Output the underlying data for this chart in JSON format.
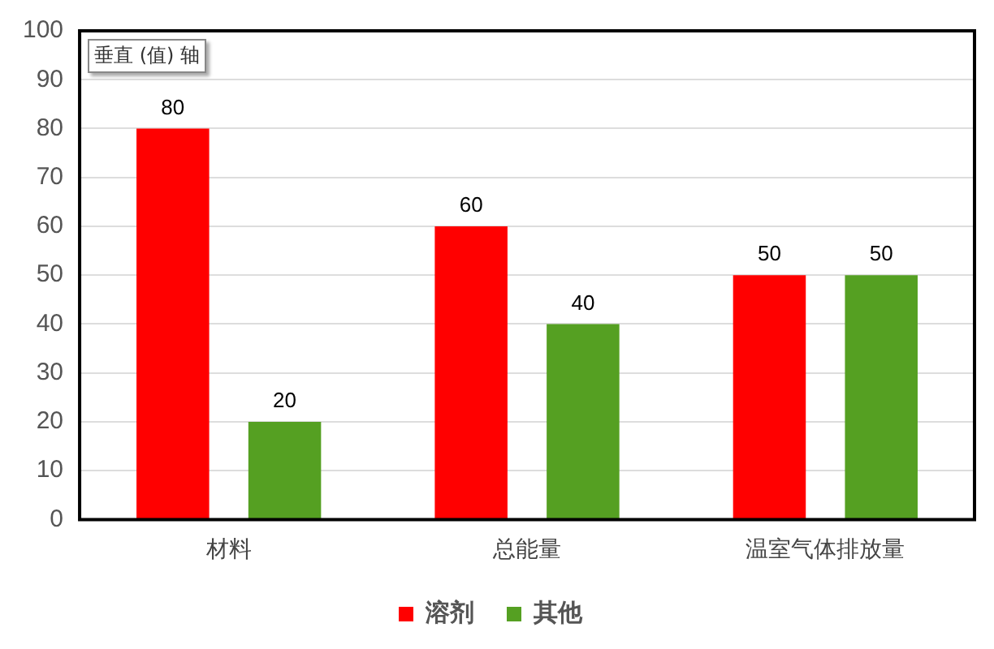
{
  "chart_data": {
    "type": "bar",
    "categories": [
      "材料",
      "总能量",
      "温室气体排放量"
    ],
    "series": [
      {
        "name": "溶剂",
        "color": "#ff0000",
        "values": [
          80,
          60,
          50
        ]
      },
      {
        "name": "其他",
        "color": "#55a022",
        "values": [
          20,
          40,
          50
        ]
      }
    ],
    "ylim": [
      0,
      100
    ],
    "yticks": [
      0,
      10,
      20,
      30,
      40,
      50,
      60,
      70,
      80,
      90,
      100
    ],
    "grid": "y",
    "legend": "bottom",
    "data_labels": true,
    "annotations": [
      "垂直 (值) 轴"
    ]
  }
}
